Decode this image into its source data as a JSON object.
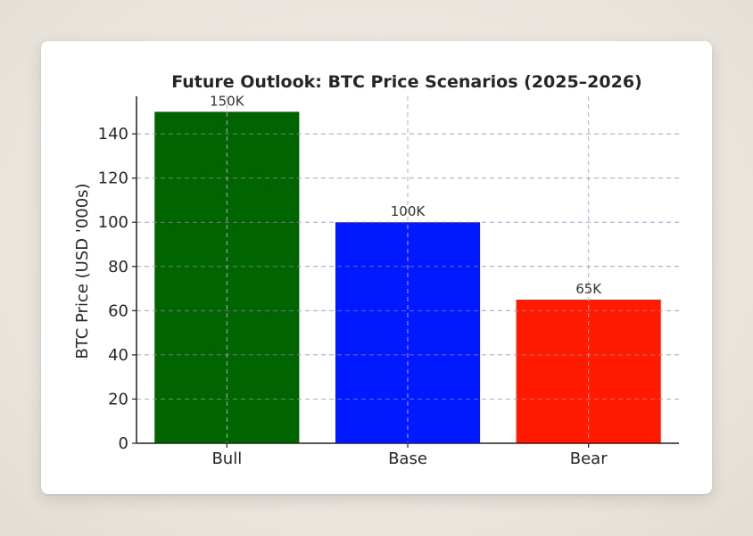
{
  "chart_data": {
    "type": "bar",
    "title": "Future Outlook: BTC Price Scenarios (2025–2026)",
    "xlabel": "",
    "ylabel": "BTC Price (USD '000s)",
    "categories": [
      "Bull",
      "Base",
      "Bear"
    ],
    "values": [
      150,
      100,
      65
    ],
    "data_labels": [
      "150K",
      "100K",
      "65K"
    ],
    "colors": [
      "#006400",
      "#0019ff",
      "#ff1a00"
    ],
    "ylim": [
      0,
      157
    ],
    "yticks": [
      0,
      20,
      40,
      60,
      80,
      100,
      120,
      140
    ],
    "grid": true,
    "legend": "none"
  }
}
